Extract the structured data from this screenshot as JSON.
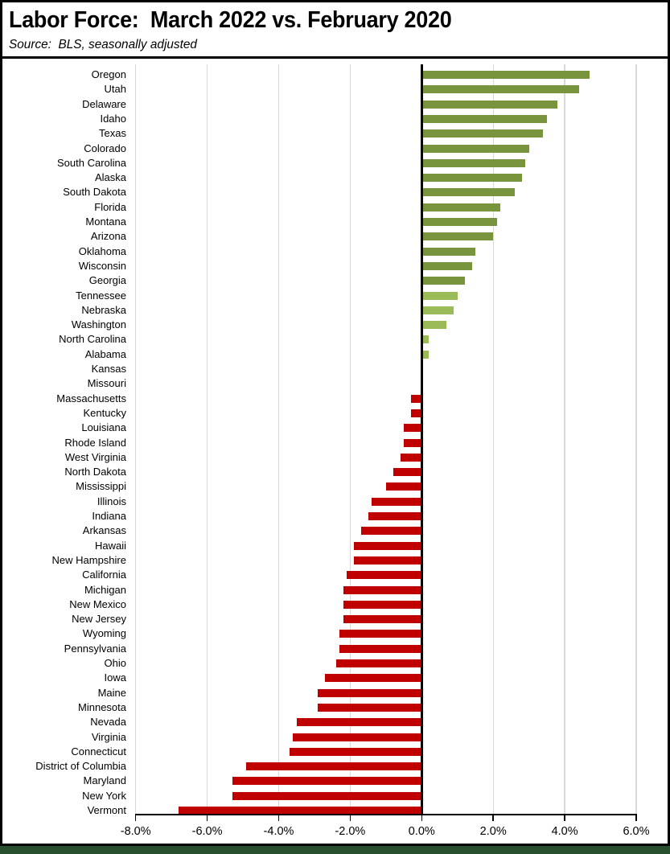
{
  "header": {
    "title": "Labor Force:  March 2022 vs. February 2020",
    "subtitle": "Source:  BLS, seasonally adjusted"
  },
  "palette": {
    "dark_green": "#78953D",
    "light_green": "#9BBB59",
    "red": "#C00000",
    "gridline": "#D9D9D9",
    "axis": "#000000",
    "bottom_strip": "#28502F"
  },
  "chart_data": {
    "type": "bar",
    "orientation": "horizontal",
    "title": "Labor Force:  March 2022 vs. February 2020",
    "subtitle": "Source:  BLS, seasonally adjusted",
    "xlim": [
      -8,
      6
    ],
    "grid": true,
    "x_tick_labels": [
      "-8.0%",
      "-6.0%",
      "-4.0%",
      "-2.0%",
      "0.0%",
      "2.0%",
      "4.0%",
      "6.0%"
    ],
    "value_unit": "percent",
    "categories": [
      "Oregon",
      "Utah",
      "Delaware",
      "Idaho",
      "Texas",
      "Colorado",
      "South Carolina",
      "Alaska",
      "South Dakota",
      "Florida",
      "Montana",
      "Arizona",
      "Oklahoma",
      "Wisconsin",
      "Georgia",
      "Tennessee",
      "Nebraska",
      "Washington",
      "North Carolina",
      "Alabama",
      "Kansas",
      "Missouri",
      "Massachusetts",
      "Kentucky",
      "Louisiana",
      "Rhode Island",
      "West Virginia",
      "North Dakota",
      "Mississippi",
      "Illinois",
      "Indiana",
      "Arkansas",
      "Hawaii",
      "New Hampshire",
      "California",
      "Michigan",
      "New Mexico",
      "New Jersey",
      "Wyoming",
      "Pennsylvania",
      "Ohio",
      "Iowa",
      "Maine",
      "Minnesota",
      "Nevada",
      "Virginia",
      "Connecticut",
      "District of Columbia",
      "Maryland",
      "New York",
      "Vermont"
    ],
    "values": [
      4.7,
      4.4,
      3.8,
      3.5,
      3.4,
      3.0,
      2.9,
      2.8,
      2.6,
      2.2,
      2.1,
      2.0,
      1.5,
      1.4,
      1.2,
      1.0,
      0.9,
      0.7,
      0.2,
      0.2,
      0.0,
      0.0,
      -0.3,
      -0.3,
      -0.5,
      -0.5,
      -0.6,
      -0.8,
      -1.0,
      -1.4,
      -1.5,
      -1.7,
      -1.9,
      -1.9,
      -2.1,
      -2.2,
      -2.2,
      -2.2,
      -2.3,
      -2.3,
      -2.4,
      -2.7,
      -2.9,
      -2.9,
      -3.5,
      -3.6,
      -3.7,
      -4.9,
      -5.3,
      -5.3,
      -6.8
    ],
    "bar_colors": [
      "dark_green",
      "dark_green",
      "dark_green",
      "dark_green",
      "dark_green",
      "dark_green",
      "dark_green",
      "dark_green",
      "dark_green",
      "dark_green",
      "dark_green",
      "dark_green",
      "dark_green",
      "dark_green",
      "dark_green",
      "light_green",
      "light_green",
      "light_green",
      "light_green",
      "light_green",
      "none",
      "none",
      "red",
      "red",
      "red",
      "red",
      "red",
      "red",
      "red",
      "red",
      "red",
      "red",
      "red",
      "red",
      "red",
      "red",
      "red",
      "red",
      "red",
      "red",
      "red",
      "red",
      "red",
      "red",
      "red",
      "red",
      "red",
      "red",
      "red",
      "red",
      "red"
    ]
  }
}
